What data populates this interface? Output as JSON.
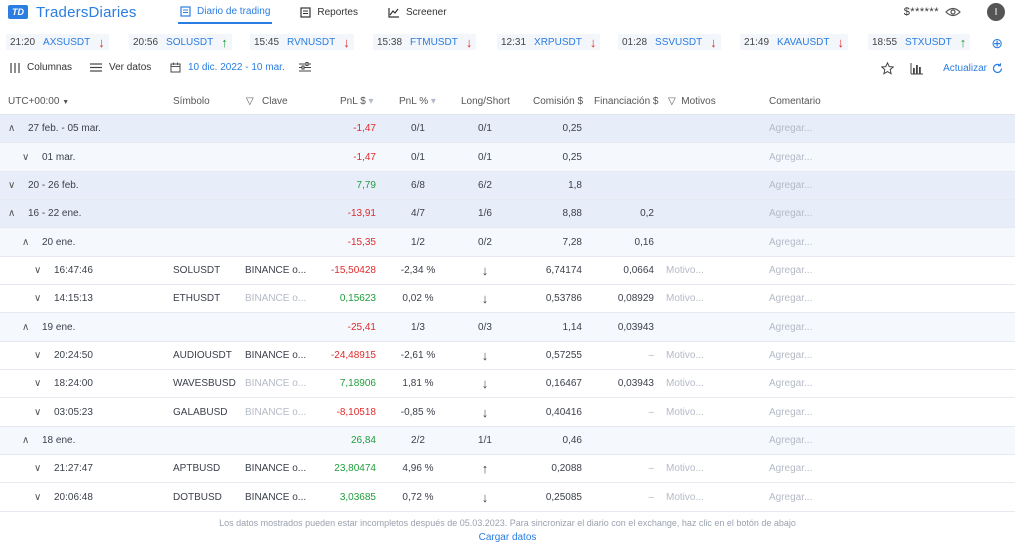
{
  "app": {
    "logo_mark": "TD",
    "name": "TradersDiaries"
  },
  "nav": [
    {
      "label": "Diario de trading",
      "icon": "journal-icon"
    },
    {
      "label": "Reportes",
      "icon": "report-icon"
    },
    {
      "label": "Screener",
      "icon": "chart-icon"
    }
  ],
  "user": {
    "balance": "$******",
    "avatar": "I"
  },
  "ticker": [
    {
      "time": "21:20",
      "symbol": "AXSUSDT",
      "dir": "down"
    },
    {
      "time": "20:56",
      "symbol": "SOLUSDT",
      "dir": "up"
    },
    {
      "time": "15:45",
      "symbol": "RVNUSDT",
      "dir": "down"
    },
    {
      "time": "15:38",
      "symbol": "FTMUSDT",
      "dir": "down"
    },
    {
      "time": "12:31",
      "symbol": "XRPUSDT",
      "dir": "down"
    },
    {
      "time": "01:28",
      "symbol": "SSVUSDT",
      "dir": "down"
    },
    {
      "time": "21:49",
      "symbol": "KAVAUSDT",
      "dir": "down"
    },
    {
      "time": "18:55",
      "symbol": "STXUSDT",
      "dir": "up"
    }
  ],
  "toolbar": {
    "columns": "Columnas",
    "view_data": "Ver datos",
    "date_range": "10 dic. 2022 - 10 mar.",
    "refresh": "Actualizar"
  },
  "columns": {
    "time": "UTC+00:00",
    "symbol": "Símbolo",
    "key": "Clave",
    "pnl": "PnL $",
    "pnl_pct": "PnL %",
    "long_short": "Long/Short",
    "commission": "Comisión $",
    "funding": "Financiación $",
    "motives": "Motivos",
    "comment": "Comentario"
  },
  "rows": [
    {
      "kind": "week",
      "level": 0,
      "open": true,
      "label": "27 feb. - 05 mar.",
      "pnl": "-1,47",
      "sign": "neg",
      "pct": "0/1",
      "ls": "0/1",
      "comm": "0,25",
      "fund": "",
      "motive": "",
      "comment": "Agregar..."
    },
    {
      "kind": "day",
      "level": 1,
      "open": false,
      "label": "01 mar.",
      "pnl": "-1,47",
      "sign": "neg",
      "pct": "0/1",
      "ls": "0/1",
      "comm": "0,25",
      "fund": "",
      "motive": "",
      "comment": "Agregar..."
    },
    {
      "kind": "week",
      "level": 0,
      "open": false,
      "label": "20 - 26 feb.",
      "pnl": "7,79",
      "sign": "pos",
      "pct": "6/8",
      "ls": "6/2",
      "comm": "1,8",
      "fund": "",
      "motive": "",
      "comment": "Agregar..."
    },
    {
      "kind": "week",
      "level": 0,
      "open": true,
      "label": "16 - 22 ene.",
      "pnl": "-13,91",
      "sign": "neg",
      "pct": "4/7",
      "ls": "1/6",
      "comm": "8,88",
      "fund": "0,2",
      "motive": "",
      "comment": "Agregar..."
    },
    {
      "kind": "day",
      "level": 1,
      "open": true,
      "label": "20 ene.",
      "pnl": "-15,35",
      "sign": "neg",
      "pct": "1/2",
      "ls": "0/2",
      "comm": "7,28",
      "fund": "0,16",
      "motive": "",
      "comment": "Agregar..."
    },
    {
      "kind": "trade",
      "level": 2,
      "label": "16:47:46",
      "symbol": "SOLUSDT",
      "key": "BINANCE o...",
      "key_muted": false,
      "pnl": "-15,50428",
      "sign": "neg",
      "pct": "-2,34 %",
      "ls": "↓",
      "comm": "6,74174",
      "fund": "0,0664",
      "motive": "Motivo...",
      "comment": "Agregar..."
    },
    {
      "kind": "trade",
      "level": 2,
      "label": "14:15:13",
      "symbol": "ETHUSDT",
      "key": "BINANCE o...",
      "key_muted": true,
      "pnl": "0,15623",
      "sign": "pos",
      "pct": "0,02 %",
      "ls": "↓",
      "comm": "0,53786",
      "fund": "0,08929",
      "motive": "Motivo...",
      "comment": "Agregar..."
    },
    {
      "kind": "day",
      "level": 1,
      "open": true,
      "label": "19 ene.",
      "pnl": "-25,41",
      "sign": "neg",
      "pct": "1/3",
      "ls": "0/3",
      "comm": "1,14",
      "fund": "0,03943",
      "motive": "",
      "comment": "Agregar..."
    },
    {
      "kind": "trade",
      "level": 2,
      "label": "20:24:50",
      "symbol": "AUDIOUSDT",
      "key": "BINANCE o...",
      "key_muted": false,
      "pnl": "-24,48915",
      "sign": "neg",
      "pct": "-2,61 %",
      "ls": "↓",
      "comm": "0,57255",
      "fund": "–",
      "motive": "Motivo...",
      "comment": "Agregar..."
    },
    {
      "kind": "trade",
      "level": 2,
      "label": "18:24:00",
      "symbol": "WAVESBUSD",
      "key": "BINANCE o...",
      "key_muted": true,
      "pnl": "7,18906",
      "sign": "pos",
      "pct": "1,81 %",
      "ls": "↓",
      "comm": "0,16467",
      "fund": "0,03943",
      "motive": "Motivo...",
      "comment": "Agregar..."
    },
    {
      "kind": "trade",
      "level": 2,
      "label": "03:05:23",
      "symbol": "GALABUSD",
      "key": "BINANCE o...",
      "key_muted": true,
      "pnl": "-8,10518",
      "sign": "neg",
      "pct": "-0,85 %",
      "ls": "↓",
      "comm": "0,40416",
      "fund": "–",
      "motive": "Motivo...",
      "comment": "Agregar..."
    },
    {
      "kind": "day",
      "level": 1,
      "open": true,
      "label": "18 ene.",
      "pnl": "26,84",
      "sign": "pos",
      "pct": "2/2",
      "ls": "1/1",
      "comm": "0,46",
      "fund": "",
      "motive": "",
      "comment": "Agregar..."
    },
    {
      "kind": "trade",
      "level": 2,
      "label": "21:27:47",
      "symbol": "APTBUSD",
      "key": "BINANCE o...",
      "key_muted": false,
      "pnl": "23,80474",
      "sign": "pos",
      "pct": "4,96 %",
      "ls": "↑",
      "comm": "0,2088",
      "fund": "–",
      "motive": "Motivo...",
      "comment": "Agregar..."
    },
    {
      "kind": "trade",
      "level": 2,
      "label": "20:06:48",
      "symbol": "DOTBUSD",
      "key": "BINANCE o...",
      "key_muted": false,
      "pnl": "3,03685",
      "sign": "pos",
      "pct": "0,72 %",
      "ls": "↓",
      "comm": "0,25085",
      "fund": "–",
      "motive": "Motivo...",
      "comment": "Agregar..."
    }
  ],
  "footer": {
    "note": "Los datos mostrados pueden estar incompletos después de 05.03.2023. Para sincronizar el diario con el exchange, haz clic en el botón de abajo",
    "link": "Cargar datos"
  }
}
